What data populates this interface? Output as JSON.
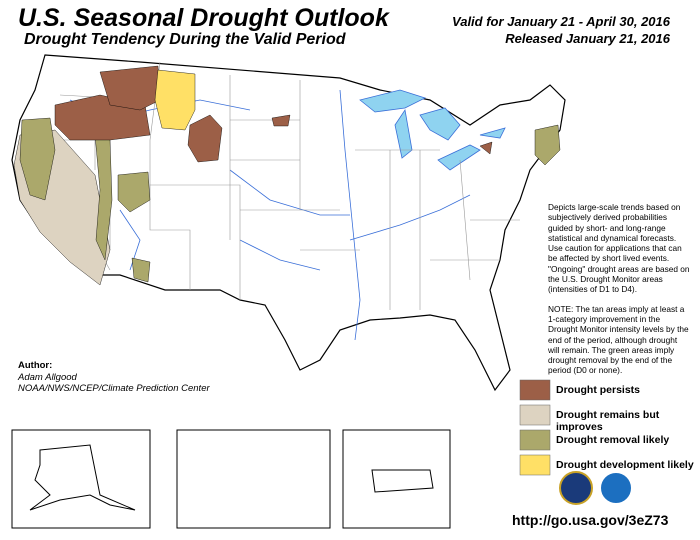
{
  "header": {
    "title": "U.S. Seasonal Drought Outlook",
    "subtitle": "Drought Tendency During the Valid Period",
    "valid": "Valid for January 21 - April 30, 2016",
    "released": "Released January 21, 2016"
  },
  "description": [
    "Depicts large-scale trends based on subjectively derived probabilities guided by short- and long-range statistical and dynamical forecasts. Use caution for applications that can be affected by short lived events. \"Ongoing\" drought areas are based on the U.S. Drought Monitor areas (intensities of D1 to D4).",
    "NOTE: The tan areas imply at least a 1-category improvement in the Drought Monitor intensity levels by the end of the period, although drought will remain. The green areas imply drought removal by the end of the period (D0 or none)."
  ],
  "author": {
    "label": "Author:",
    "name": "Adam Allgood",
    "org": "NOAA/NWS/NCEP/Climate Prediction Center"
  },
  "legend": [
    {
      "label": "Drought persists",
      "color": "#9c5f47"
    },
    {
      "label": "Drought remains but improves",
      "color": "#ddd3c1"
    },
    {
      "label": "Drought removal likely",
      "color": "#aba86b"
    },
    {
      "label": "Drought development likely",
      "color": "#ffe066"
    }
  ],
  "url": "http://go.usa.gov/3eZ73"
}
